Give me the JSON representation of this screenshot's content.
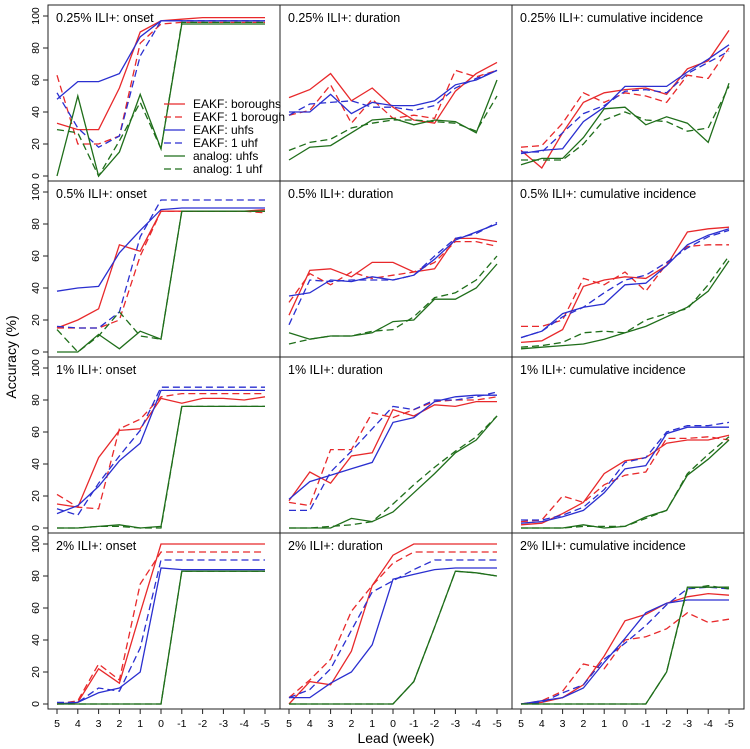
{
  "chart_data": {
    "type": "line",
    "xlabel": "Lead (week)",
    "ylabel": "Accuracy (%)",
    "x": [
      5,
      4,
      3,
      2,
      1,
      0,
      -1,
      -2,
      -3,
      -4,
      -5
    ],
    "x_tick_labels": [
      "5",
      "4",
      "3",
      "2",
      "1",
      "0",
      "-1",
      "-2",
      "-3",
      "-4",
      "-5"
    ],
    "ylim": [
      0,
      100
    ],
    "y_ticks": [
      0,
      20,
      40,
      60,
      80,
      100
    ],
    "legend_placement": "inside first panel, lower-right",
    "series_styles": [
      {
        "name": "EAKF: boroughs",
        "color": "#e8292b",
        "dash": false
      },
      {
        "name": "EAKF: 1 borough",
        "color": "#e8292b",
        "dash": true
      },
      {
        "name": "EAKF: uhfs",
        "color": "#2a2fd0",
        "dash": false
      },
      {
        "name": "EAKF: 1 uhf",
        "color": "#2a2fd0",
        "dash": true
      },
      {
        "name": "analog: uhfs",
        "color": "#1f6e1a",
        "dash": false
      },
      {
        "name": "analog: 1 uhf",
        "color": "#1f6e1a",
        "dash": true
      }
    ],
    "panels": [
      {
        "title": "0.25% ILI+: onset",
        "series": [
          [
            33,
            29,
            29,
            55,
            90,
            97,
            98,
            99,
            99,
            99,
            99
          ],
          [
            63,
            20,
            20,
            25,
            83,
            95,
            96,
            96,
            96,
            96,
            96
          ],
          [
            48,
            59,
            59,
            64,
            87,
            97,
            97,
            97,
            97,
            97,
            97
          ],
          [
            52,
            30,
            18,
            25,
            75,
            97,
            97,
            97,
            97,
            97,
            97
          ],
          [
            0,
            50,
            0,
            15,
            51,
            17,
            95,
            95,
            95,
            95,
            95
          ],
          [
            29,
            27,
            0,
            22,
            46,
            17,
            96,
            96,
            96,
            96,
            96
          ]
        ]
      },
      {
        "title": "0.25% ILI+: duration",
        "series": [
          [
            49,
            54,
            64,
            47,
            55,
            43,
            35,
            33,
            53,
            64,
            71
          ],
          [
            38,
            41,
            57,
            33,
            48,
            36,
            38,
            36,
            66,
            62,
            66
          ],
          [
            40,
            40,
            51,
            39,
            46,
            44,
            44,
            47,
            57,
            60,
            66
          ],
          [
            38,
            45,
            46,
            47,
            43,
            43,
            41,
            44,
            55,
            61,
            66
          ],
          [
            10,
            18,
            19,
            27,
            35,
            36,
            32,
            35,
            34,
            27,
            60
          ],
          [
            16,
            21,
            23,
            30,
            33,
            35,
            35,
            34,
            33,
            28,
            50
          ]
        ]
      },
      {
        "title": "0.25% ILI+: cumulative incidence",
        "series": [
          [
            16,
            5,
            27,
            46,
            52,
            54,
            55,
            51,
            67,
            72,
            91
          ],
          [
            18,
            19,
            33,
            52,
            46,
            52,
            50,
            46,
            63,
            61,
            80
          ],
          [
            14,
            16,
            17,
            34,
            43,
            56,
            56,
            56,
            65,
            73,
            82
          ],
          [
            15,
            15,
            27,
            39,
            44,
            53,
            54,
            52,
            64,
            71,
            78
          ],
          [
            7,
            11,
            11,
            24,
            42,
            43,
            32,
            37,
            33,
            21,
            58
          ],
          [
            10,
            10,
            10,
            20,
            35,
            40,
            35,
            34,
            28,
            30,
            56
          ]
        ]
      },
      {
        "title": "0.5% ILI+: onset",
        "series": [
          [
            15,
            20,
            27,
            67,
            63,
            88,
            88,
            88,
            88,
            88,
            89
          ],
          [
            15,
            15,
            15,
            20,
            60,
            88,
            88,
            88,
            88,
            88,
            87
          ],
          [
            38,
            40,
            41,
            62,
            76,
            89,
            90,
            90,
            90,
            90,
            90
          ],
          [
            16,
            15,
            15,
            25,
            72,
            95,
            95,
            95,
            95,
            95,
            95
          ],
          [
            0,
            0,
            11,
            2,
            13,
            8,
            88,
            88,
            88,
            88,
            88
          ],
          [
            14,
            0,
            10,
            25,
            10,
            8,
            88,
            88,
            88,
            88,
            88
          ]
        ]
      },
      {
        "title": "0.5% ILI+: duration",
        "series": [
          [
            23,
            51,
            52,
            47,
            56,
            56,
            50,
            52,
            71,
            71,
            69
          ],
          [
            31,
            49,
            42,
            50,
            46,
            48,
            50,
            56,
            69,
            69,
            66
          ],
          [
            35,
            37,
            45,
            44,
            47,
            45,
            48,
            58,
            70,
            75,
            80
          ],
          [
            17,
            45,
            44,
            45,
            45,
            45,
            48,
            60,
            71,
            74,
            81
          ],
          [
            12,
            8,
            10,
            10,
            12,
            19,
            20,
            33,
            33,
            40,
            55
          ],
          [
            5,
            8,
            10,
            10,
            13,
            14,
            22,
            34,
            37,
            45,
            60
          ]
        ]
      },
      {
        "title": "0.5% ILI+: cumulative incidence",
        "series": [
          [
            6,
            7,
            14,
            41,
            45,
            47,
            46,
            54,
            75,
            77,
            78
          ],
          [
            16,
            16,
            20,
            46,
            42,
            50,
            38,
            55,
            66,
            67,
            67
          ],
          [
            9,
            13,
            24,
            28,
            30,
            42,
            43,
            54,
            67,
            73,
            77
          ],
          [
            9,
            13,
            22,
            28,
            37,
            45,
            48,
            56,
            65,
            72,
            76
          ],
          [
            2,
            3,
            4,
            5,
            8,
            12,
            16,
            22,
            28,
            38,
            57
          ],
          [
            3,
            4,
            6,
            12,
            13,
            12,
            20,
            24,
            27,
            42,
            60
          ]
        ]
      },
      {
        "title": "1% ILI+: onset",
        "series": [
          [
            15,
            13,
            44,
            61,
            62,
            81,
            78,
            81,
            81,
            80,
            82
          ],
          [
            21,
            13,
            12,
            62,
            68,
            82,
            84,
            84,
            84,
            84,
            84
          ],
          [
            9,
            14,
            26,
            42,
            53,
            86,
            86,
            86,
            86,
            86,
            86
          ],
          [
            12,
            8,
            28,
            45,
            61,
            88,
            88,
            88,
            88,
            88,
            88
          ],
          [
            0,
            0,
            1,
            2,
            0,
            1,
            76,
            76,
            76,
            76,
            76
          ],
          [
            0,
            0,
            1,
            1,
            0,
            0,
            76,
            76,
            76,
            76,
            76
          ]
        ]
      },
      {
        "title": "1% ILI+: duration",
        "series": [
          [
            17,
            35,
            28,
            45,
            47,
            74,
            70,
            77,
            76,
            79,
            79
          ],
          [
            16,
            14,
            49,
            49,
            72,
            69,
            74,
            79,
            80,
            80,
            82
          ],
          [
            18,
            29,
            33,
            37,
            41,
            66,
            69,
            79,
            82,
            83,
            83
          ],
          [
            11,
            11,
            35,
            48,
            62,
            76,
            74,
            80,
            80,
            82,
            85
          ],
          [
            0,
            0,
            0,
            6,
            4,
            10,
            22,
            34,
            47,
            55,
            70
          ],
          [
            0,
            0,
            1,
            2,
            4,
            15,
            27,
            38,
            48,
            57,
            70
          ]
        ]
      },
      {
        "title": "1% ILI+: cumulative incidence",
        "series": [
          [
            2,
            3,
            9,
            16,
            34,
            42,
            44,
            53,
            55,
            55,
            58
          ],
          [
            4,
            5,
            20,
            16,
            27,
            33,
            35,
            56,
            56,
            57,
            55
          ],
          [
            3,
            4,
            7,
            11,
            22,
            37,
            39,
            59,
            63,
            63,
            63
          ],
          [
            5,
            5,
            8,
            13,
            24,
            41,
            44,
            60,
            64,
            64,
            66
          ],
          [
            0,
            0,
            0,
            2,
            0,
            1,
            7,
            11,
            33,
            43,
            55
          ],
          [
            0,
            0,
            0,
            1,
            1,
            1,
            6,
            11,
            34,
            46,
            57
          ]
        ]
      },
      {
        "title": "2% ILI+: onset",
        "series": [
          [
            0,
            1,
            22,
            13,
            57,
            100,
            100,
            100,
            100,
            100,
            100
          ],
          [
            0,
            2,
            25,
            15,
            75,
            95,
            95,
            95,
            95,
            95,
            95
          ],
          [
            0,
            1,
            7,
            10,
            20,
            85,
            84,
            84,
            84,
            84,
            84
          ],
          [
            1,
            1,
            10,
            8,
            35,
            90,
            90,
            90,
            90,
            90,
            90
          ],
          [
            0,
            0,
            0,
            0,
            0,
            0,
            83,
            83,
            83,
            83,
            83
          ],
          [
            0,
            0,
            0,
            0,
            0,
            0,
            83,
            83,
            83,
            83,
            83
          ]
        ]
      },
      {
        "title": "2% ILI+: duration",
        "series": [
          [
            0,
            14,
            12,
            33,
            74,
            93,
            100,
            100,
            100,
            100,
            100
          ],
          [
            4,
            15,
            28,
            58,
            74,
            88,
            95,
            95,
            95,
            95,
            95
          ],
          [
            4,
            4,
            13,
            20,
            37,
            78,
            81,
            84,
            85,
            85,
            85
          ],
          [
            4,
            9,
            22,
            46,
            70,
            77,
            84,
            90,
            90,
            90,
            90
          ],
          [
            0,
            0,
            0,
            0,
            0,
            0,
            14,
            48,
            83,
            82,
            80
          ],
          [
            0,
            0,
            0,
            0,
            0,
            0,
            14,
            48,
            83,
            82,
            80
          ]
        ]
      },
      {
        "title": "2% ILI+: cumulative incidence",
        "series": [
          [
            0,
            1,
            4,
            12,
            30,
            52,
            56,
            63,
            67,
            69,
            68
          ],
          [
            0,
            2,
            8,
            25,
            22,
            40,
            42,
            47,
            57,
            51,
            53
          ],
          [
            0,
            2,
            4,
            10,
            26,
            41,
            57,
            63,
            65,
            65,
            65
          ],
          [
            0,
            1,
            7,
            12,
            28,
            38,
            49,
            62,
            72,
            73,
            72
          ],
          [
            0,
            0,
            0,
            0,
            0,
            0,
            0,
            20,
            73,
            73,
            73
          ],
          [
            0,
            0,
            0,
            0,
            0,
            0,
            0,
            20,
            72,
            74,
            72
          ]
        ]
      }
    ]
  }
}
